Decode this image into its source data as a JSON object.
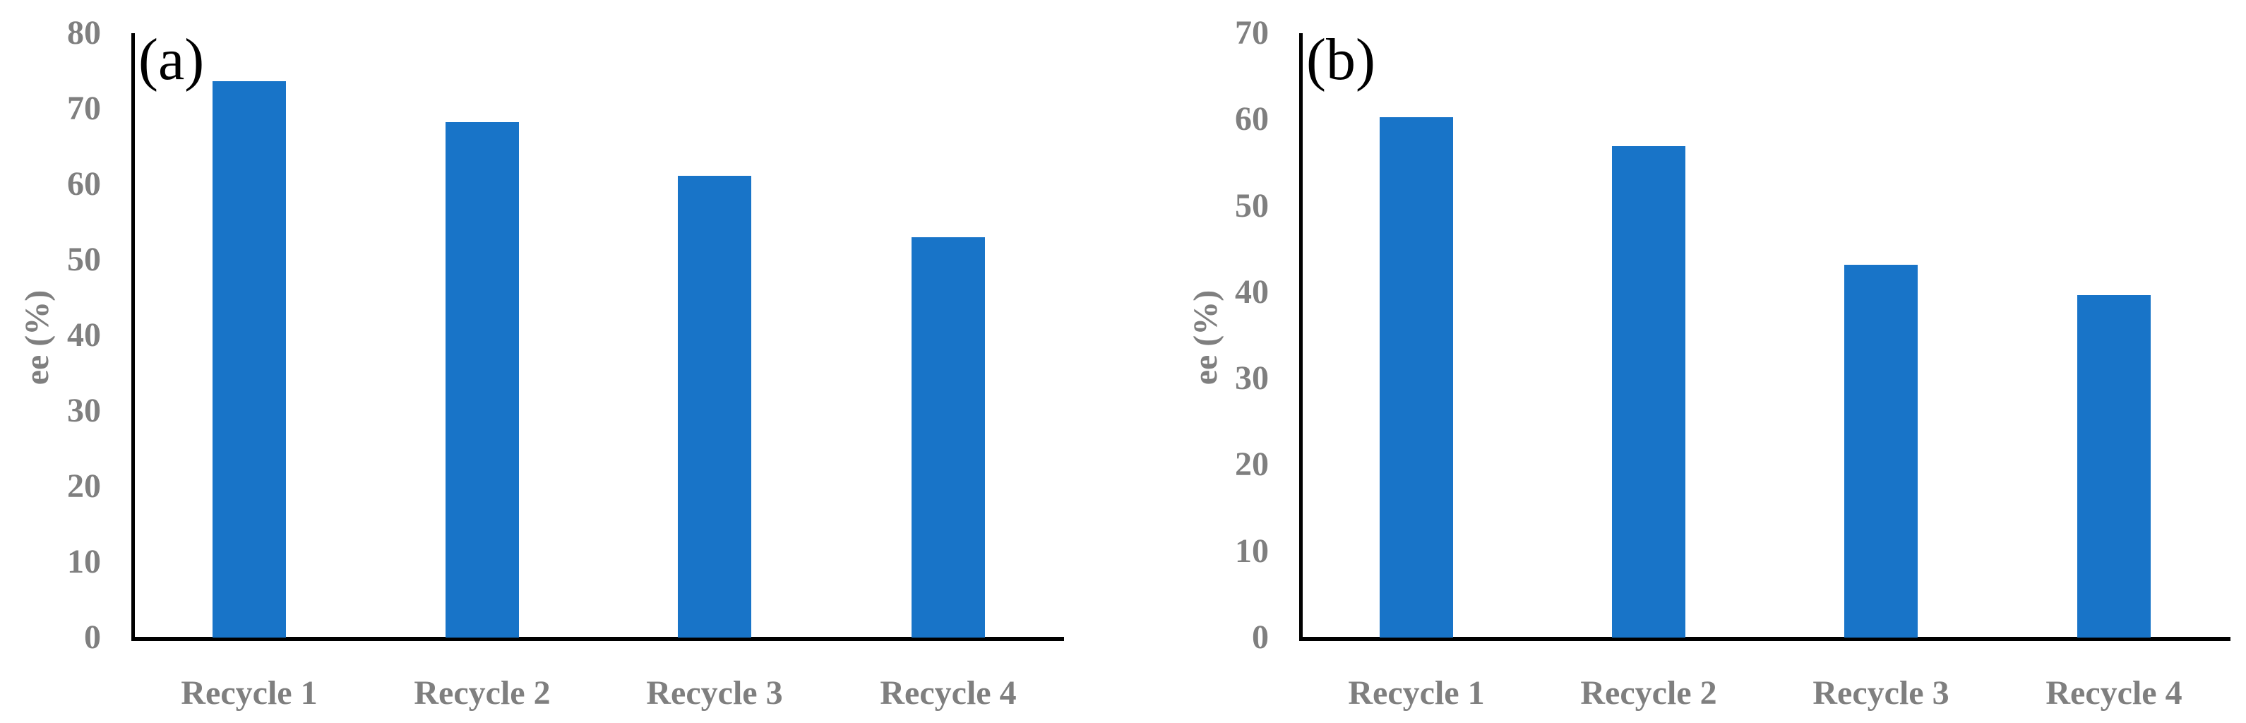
{
  "chart_data": [
    {
      "type": "bar",
      "panel_label": "(a)",
      "title": "",
      "xlabel": "",
      "ylabel": "ee (%)",
      "categories": [
        "Recycle 1",
        "Recycle 2",
        "Recycle 3",
        "Recycle 4"
      ],
      "values": [
        73.6,
        68.2,
        61.1,
        53.0
      ],
      "ylim": [
        0,
        80
      ],
      "yticks": [
        "0",
        "10",
        "20",
        "30",
        "40",
        "50",
        "60",
        "70",
        "80"
      ],
      "grid": false,
      "legend": null,
      "bar_color": "#1874c8"
    },
    {
      "type": "bar",
      "panel_label": "(b)",
      "title": "",
      "xlabel": "",
      "ylabel": "ee (%)",
      "categories": [
        "Recycle 1",
        "Recycle 2",
        "Recycle 3",
        "Recycle 4"
      ],
      "values": [
        60.3,
        56.9,
        43.2,
        39.7
      ],
      "ylim": [
        0,
        70
      ],
      "yticks": [
        "0",
        "10",
        "20",
        "30",
        "40",
        "50",
        "60",
        "70"
      ],
      "grid": false,
      "legend": null,
      "bar_color": "#1874c8"
    }
  ]
}
